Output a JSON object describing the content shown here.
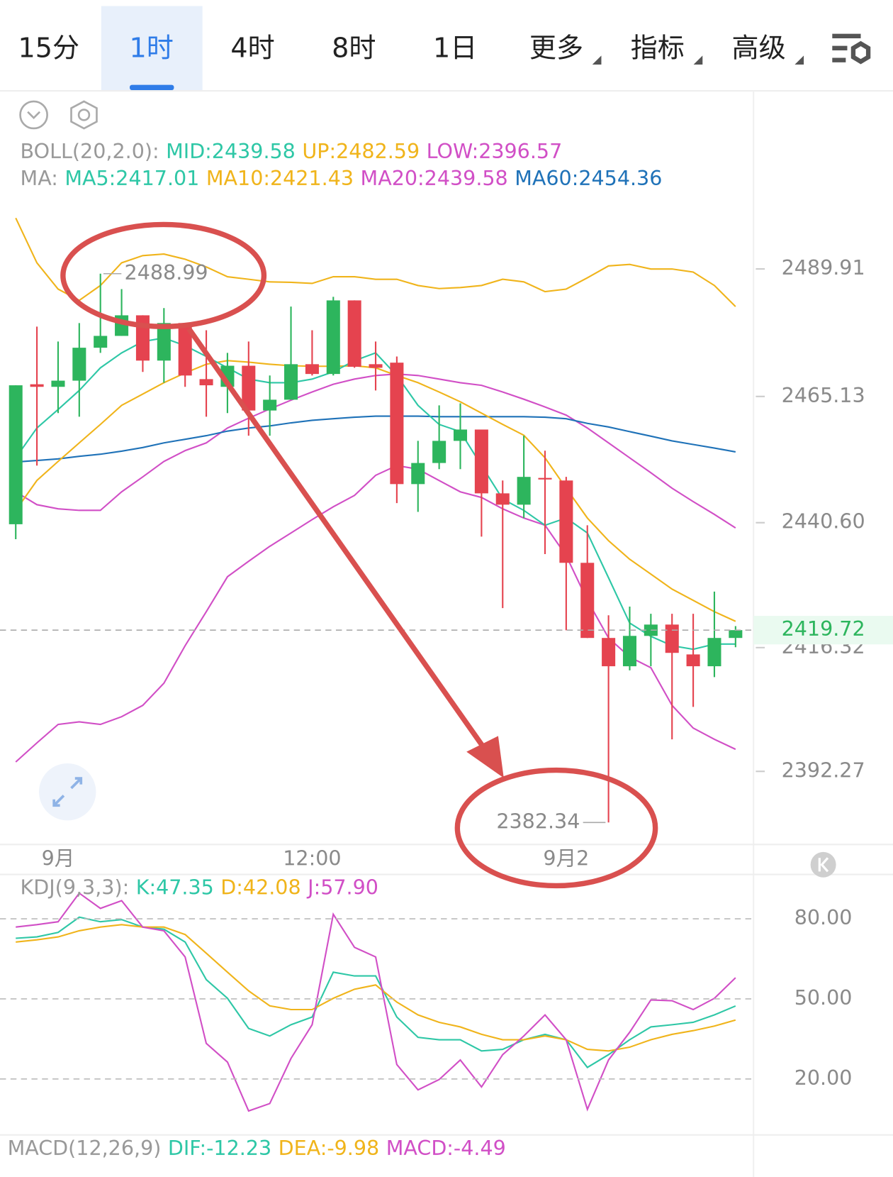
{
  "tabs": [
    "15分",
    "1时",
    "4时",
    "8时",
    "1日",
    "更多",
    "指标",
    "高级"
  ],
  "chart_data": [
    {
      "type": "candlestick",
      "categories": [
        null,
        null,
        "9月",
        null,
        null,
        null,
        null,
        null,
        null,
        null,
        null,
        null,
        null,
        null,
        "12:00",
        null,
        null,
        null,
        null,
        null,
        null,
        null,
        null,
        null,
        null,
        null,
        "9月2",
        null,
        null,
        null,
        null,
        null,
        null,
        null,
        null
      ],
      "open": [
        2440.3,
        2467.5,
        2467.0,
        2468.2,
        2474.6,
        2476.9,
        2480.9,
        2472.1,
        2479.4,
        2468.5,
        2467.0,
        2471.1,
        2462.4,
        2464.5,
        2471.4,
        2469.5,
        2483.8,
        2471.4,
        2471.7,
        2448.1,
        2452.2,
        2456.5,
        2458.7,
        2446.3,
        2444.1,
        2449.3,
        2448.8,
        2432.8,
        2418.2,
        2412.7,
        2418.6,
        2420.8,
        2415.0,
        2412.7,
        2418.2
      ],
      "high": [
        2467.3,
        2478.7,
        2475.8,
        2479.4,
        2488.99,
        2486.0,
        2480.9,
        2482.3,
        2479.4,
        2478.0,
        2473.6,
        2475.8,
        2469.2,
        2482.6,
        2478.0,
        2484.5,
        2483.8,
        2475.8,
        2472.9,
        2456.5,
        2463.4,
        2463.8,
        2458.7,
        2448.8,
        2457.5,
        2454.6,
        2449.5,
        2440.1,
        2422.6,
        2424.3,
        2422.9,
        2422.9,
        2422.9,
        2427.2,
        2420.5
      ],
      "low": [
        2437.4,
        2451.7,
        2461.9,
        2461.2,
        2473.6,
        2476.9,
        2469.9,
        2467.8,
        2467.0,
        2461.2,
        2461.9,
        2457.5,
        2457.5,
        2464.5,
        2469.2,
        2469.2,
        2470.7,
        2466.3,
        2444.4,
        2442.7,
        2451.0,
        2451.0,
        2437.9,
        2424.0,
        2441.5,
        2434.5,
        2419.7,
        2418.2,
        2382.34,
        2411.9,
        2412.7,
        2398.5,
        2404.8,
        2410.6,
        2416.4
      ],
      "close": [
        2467.3,
        2467.0,
        2468.2,
        2474.6,
        2476.9,
        2480.9,
        2472.1,
        2479.4,
        2469.2,
        2467.3,
        2471.1,
        2462.4,
        2464.5,
        2471.4,
        2469.5,
        2483.8,
        2470.9,
        2470.7,
        2448.1,
        2452.2,
        2456.5,
        2458.7,
        2446.3,
        2444.1,
        2449.5,
        2449.0,
        2432.8,
        2418.2,
        2412.7,
        2418.6,
        2420.8,
        2415.3,
        2412.7,
        2418.2,
        2419.72
      ],
      "up_color": "#2db55d",
      "down_color": "#e5434f",
      "lines": [
        {
          "color": "#f0b41b",
          "values": [
            2499.8,
            2491.1,
            2486.0,
            2483.8,
            2486.7,
            2491.1,
            2492.5,
            2492.8,
            2491.8,
            2490.3,
            2488.4,
            2487.9,
            2487.4,
            2487.3,
            2487.1,
            2488.4,
            2488.4,
            2487.9,
            2487.9,
            2486.7,
            2486.1,
            2486.3,
            2486.7,
            2487.9,
            2487.4,
            2485.5,
            2486.0,
            2488.2,
            2490.5,
            2490.8,
            2489.9,
            2489.9,
            2489.3,
            2486.7,
            2482.59
          ]
        },
        {
          "color": "#d14fc6",
          "values": [
            2446.6,
            2444.1,
            2443.3,
            2443.0,
            2443.0,
            2446.6,
            2449.5,
            2452.5,
            2454.6,
            2456.1,
            2459.0,
            2460.9,
            2462.7,
            2464.4,
            2466.0,
            2467.5,
            2468.5,
            2469.2,
            2469.5,
            2469.2,
            2468.5,
            2467.8,
            2467.3,
            2466.0,
            2464.6,
            2463.1,
            2461.5,
            2459.0,
            2456.1,
            2453.2,
            2450.3,
            2447.3,
            2444.7,
            2442.2,
            2439.58
          ]
        },
        {
          "color": "#d14fc6",
          "values": [
            2394.1,
            2397.8,
            2401.4,
            2401.9,
            2401.4,
            2402.9,
            2405.1,
            2409.4,
            2416.7,
            2423.3,
            2430.1,
            2433.1,
            2436.0,
            2438.6,
            2441.2,
            2443.7,
            2445.9,
            2449.8,
            2451.7,
            2451.0,
            2448.8,
            2446.6,
            2445.5,
            2443.3,
            2441.5,
            2440.1,
            2434.2,
            2425.5,
            2418.2,
            2414.5,
            2412.4,
            2405.1,
            2400.7,
            2398.5,
            2396.57
          ]
        },
        {
          "color": "#1f72b8",
          "values": [
            2452.4,
            2452.7,
            2453.0,
            2453.5,
            2453.9,
            2454.5,
            2455.2,
            2456.1,
            2456.8,
            2457.5,
            2458.4,
            2459.0,
            2459.4,
            2460.0,
            2460.5,
            2460.8,
            2461.1,
            2461.3,
            2461.3,
            2461.3,
            2461.2,
            2461.2,
            2461.2,
            2461.2,
            2461.2,
            2461.1,
            2460.8,
            2459.9,
            2459.2,
            2458.3,
            2457.4,
            2456.5,
            2455.8,
            2455.1,
            2454.36
          ]
        },
        {
          "color": "#f0b41b",
          "values": [
            2443.0,
            2448.8,
            2452.5,
            2456.1,
            2459.7,
            2463.4,
            2465.6,
            2467.8,
            2469.7,
            2471.4,
            2472.1,
            2471.8,
            2471.4,
            2471.1,
            2471.0,
            2471.0,
            2471.1,
            2470.7,
            2469.2,
            2467.8,
            2466.0,
            2464.1,
            2461.9,
            2459.7,
            2457.6,
            2453.2,
            2447.3,
            2441.5,
            2437.1,
            2433.5,
            2430.6,
            2427.7,
            2425.5,
            2423.3,
            2421.43
          ]
        },
        {
          "color": "#2ec7a6",
          "values": [
            2453.2,
            2459.0,
            2462.6,
            2466.3,
            2470.7,
            2473.6,
            2475.8,
            2476.5,
            2475.0,
            2472.9,
            2470.7,
            2468.5,
            2467.8,
            2467.8,
            2468.5,
            2469.9,
            2472.1,
            2473.6,
            2469.2,
            2463.4,
            2459.7,
            2458.3,
            2451.7,
            2445.2,
            2443.0,
            2440.1,
            2441.5,
            2438.6,
            2429.9,
            2421.1,
            2418.5,
            2416.7,
            2416.0,
            2417.0,
            2417.01
          ]
        }
      ],
      "indicators": [
        {
          "title": "BOLL(20,2.0):",
          "items": [
            {
              "text": "MID:2439.58",
              "color": "#2ec7a6"
            },
            {
              "text": "UP:2482.59",
              "color": "#f0b41b"
            },
            {
              "text": "LOW:2396.57",
              "color": "#d14fc6"
            }
          ]
        },
        {
          "title": "MA:",
          "items": [
            {
              "text": "MA5:2417.01",
              "color": "#2ec7a6"
            },
            {
              "text": "MA10:2421.43",
              "color": "#f0b41b"
            },
            {
              "text": "MA20:2439.58",
              "color": "#d14fc6"
            },
            {
              "text": "MA60:2454.36",
              "color": "#1f72b8"
            }
          ]
        }
      ],
      "ylim": [
        2378.8,
        2505.7
      ],
      "yticks": [
        2489.91,
        2465.13,
        {
          "value": 2440.6,
          "label": "2440.60"
        },
        2416.32,
        2392.27
      ]
    },
    {
      "type": "line",
      "series": [
        {
          "color": "#2ec7a6",
          "values": [
            72.7,
            73.2,
            74.9,
            80.6,
            78.9,
            79.7,
            76.9,
            76.1,
            71.3,
            57.2,
            50.2,
            38.9,
            36.1,
            40.3,
            43.2,
            60.0,
            58.6,
            58.6,
            43.2,
            35.6,
            34.7,
            34.7,
            30.5,
            31.1,
            34.7,
            36.7,
            34.7,
            24.3,
            29.1,
            34.7,
            39.5,
            40.3,
            41.2,
            44.0,
            47.35
          ]
        },
        {
          "color": "#f0b41b",
          "values": [
            71.3,
            72.1,
            73.2,
            75.5,
            76.9,
            77.8,
            76.9,
            76.9,
            74.1,
            67.1,
            60.0,
            53.0,
            47.4,
            46.0,
            46.0,
            50.2,
            53.6,
            55.2,
            48.8,
            44.0,
            41.2,
            39.5,
            36.7,
            34.7,
            34.7,
            36.1,
            34.7,
            31.1,
            30.5,
            31.9,
            34.7,
            36.7,
            38.1,
            39.8,
            42.08
          ]
        },
        {
          "color": "#d14fc6",
          "values": [
            76.9,
            77.8,
            78.9,
            89.6,
            83.9,
            86.8,
            76.9,
            75.5,
            65.7,
            33.3,
            26.3,
            8.0,
            10.8,
            27.7,
            40.3,
            81.7,
            69.3,
            65.7,
            25.4,
            15.9,
            19.8,
            27.1,
            17.0,
            29.1,
            36.1,
            44.0,
            34.7,
            8.6,
            27.1,
            37.5,
            49.6,
            49.3,
            46.0,
            50.2,
            57.9
          ]
        }
      ],
      "indicators": [
        {
          "title": "KDJ(9,3,3):",
          "items": [
            {
              "text": "K:47.35",
              "color": "#2ec7a6"
            },
            {
              "text": "D:42.08",
              "color": "#f0b41b"
            },
            {
              "text": "J:57.90",
              "color": "#d14fc6"
            }
          ]
        }
      ],
      "ylim": [
        -0.4,
        96.6
      ],
      "yticks": [
        {
          "value": 80,
          "label": "80.00"
        },
        {
          "value": 50,
          "label": "50.00"
        },
        {
          "value": 20,
          "label": "20.00"
        }
      ],
      "grid": true
    }
  ],
  "macd": {
    "title": "MACD(12,26,9)",
    "items": [
      {
        "text": "DIF:-12.23",
        "color": "#2ec7a6"
      },
      {
        "text": "DEA:-9.98",
        "color": "#f0b41b"
      },
      {
        "text": "MACD:-4.49",
        "color": "#d14fc6"
      }
    ]
  }
}
